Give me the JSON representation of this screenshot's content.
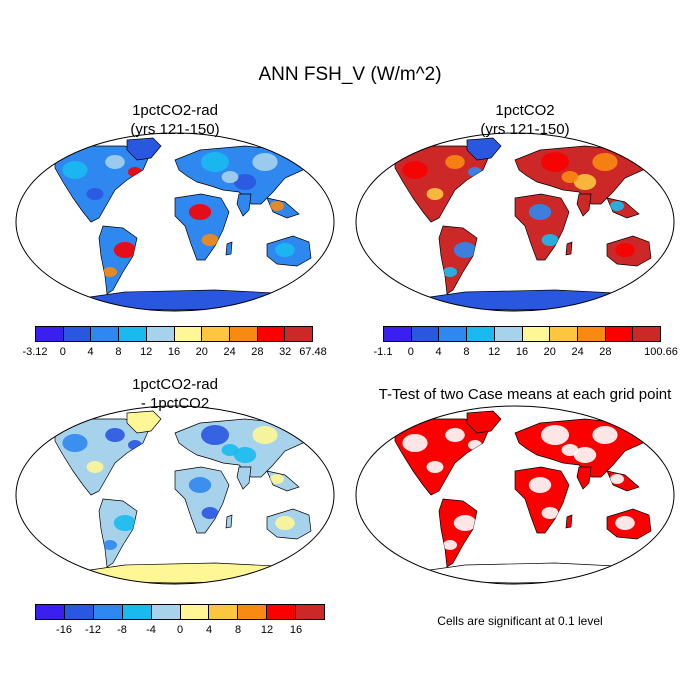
{
  "title": "ANN FSH_V (W/m^2)",
  "panels": [
    {
      "title_line1": "1pctCO2-rad",
      "title_line2": "(yrs 121-150)",
      "colorbar": {
        "colors": [
          "#3a1ff0",
          "#2a57e0",
          "#2f87f0",
          "#19baf0",
          "#a6d2ec",
          "#fff696",
          "#fcc63e",
          "#f88a12",
          "#fa0000",
          "#cc2828"
        ],
        "labels": [
          "-3.12",
          "0",
          "4",
          "8",
          "12",
          "16",
          "20",
          "24",
          "28",
          "32",
          "67.48"
        ]
      }
    },
    {
      "title_line1": "1pctCO2",
      "title_line2": "(yrs 121-150)",
      "colorbar": {
        "colors": [
          "#3a1ff0",
          "#2a57e0",
          "#2f87f0",
          "#19baf0",
          "#a6d2ec",
          "#fff696",
          "#fcc63e",
          "#f88a12",
          "#fa0000",
          "#cc2828"
        ],
        "labels": [
          "-1.1",
          "0",
          "4",
          "8",
          "12",
          "16",
          "20",
          "24",
          "28",
          "",
          "100.66"
        ]
      }
    },
    {
      "title_line1": "1pctCO2-rad",
      "title_line2": "- 1pctCO2",
      "colorbar": {
        "colors": [
          "#3a1ff0",
          "#2a57e0",
          "#2f87f0",
          "#19baf0",
          "#a6d2ec",
          "#fff696",
          "#fcc63e",
          "#f88a12",
          "#fa0000",
          "#cc2828"
        ],
        "labels": [
          "",
          "-16",
          "-12",
          "-8",
          "-4",
          "0",
          "4",
          "8",
          "12",
          "16",
          ""
        ]
      }
    },
    {
      "title_line1": "T-Test of two Case means at each grid point",
      "title_line2": "",
      "note": "Cells are significant at 0.1 level"
    }
  ],
  "map_palettes": {
    "panel1": {
      "land": "#2f87f0",
      "accents": [
        "#19baf0",
        "#a6d2ec",
        "#2a57e0",
        "#fa0000",
        "#f88a12"
      ],
      "antarctica": "#2a57e0",
      "greenland": "#2a57e0"
    },
    "panel2": {
      "land": "#cc2828",
      "accents": [
        "#fa0000",
        "#f88a12",
        "#fcc63e",
        "#2f87f0",
        "#19baf0"
      ],
      "antarctica": "#2a57e0",
      "greenland": "#2a57e0"
    },
    "panel3": {
      "land": "#a6d2ec",
      "accents": [
        "#2f87f0",
        "#2a57e0",
        "#fff696",
        "#19baf0"
      ],
      "antarctica": "#fff696",
      "greenland": "#fff696"
    },
    "panel4": {
      "land": "#fa0000",
      "accents": [
        "#ffffff"
      ],
      "antarctica": "#ffffff",
      "greenland": "#fa0000"
    }
  }
}
